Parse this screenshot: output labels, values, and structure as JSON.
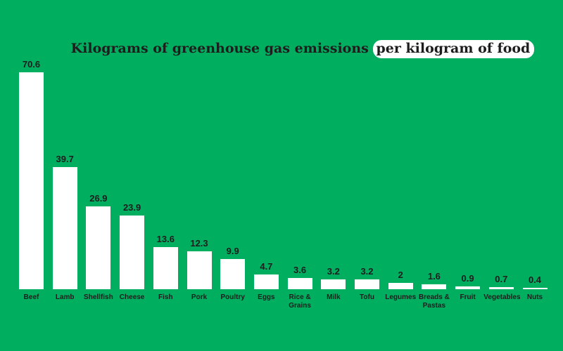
{
  "chart_data": {
    "type": "bar",
    "title": "Kilograms of greenhouse gas emissions",
    "title_highlight": "per kilogram of food",
    "categories": [
      "Beef",
      "Lamb",
      "Shellfish",
      "Cheese",
      "Fish",
      "Pork",
      "Poultry",
      "Eggs",
      "Rice & Grains",
      "Milk",
      "Tofu",
      "Legumes",
      "Breads & Pastas",
      "Fruit",
      "Vegetables",
      "Nuts"
    ],
    "values": [
      70.6,
      39.7,
      26.9,
      23.9,
      13.6,
      12.3,
      9.9,
      4.7,
      3.6,
      3.2,
      3.2,
      2,
      1.6,
      0.9,
      0.7,
      0.4
    ],
    "color": "#ffffff",
    "background": "#00ae60"
  }
}
